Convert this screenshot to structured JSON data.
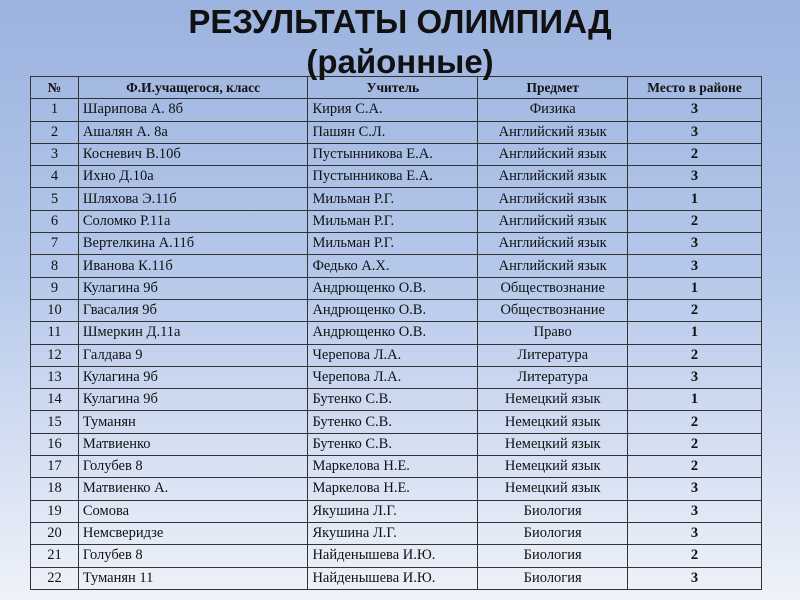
{
  "title": {
    "line1": "РЕЗУЛЬТАТЫ ОЛИМПИАД",
    "line2": "(районные)"
  },
  "table": {
    "headers": [
      "№",
      "Ф.И.учащегося, класс",
      "Учитель",
      "Предмет",
      "Место в районе"
    ],
    "rows": [
      [
        "1",
        "Шарипова А. 8б",
        "Кирия С.А.",
        "Физика",
        "3"
      ],
      [
        "2",
        "Ашалян А. 8а",
        "Пашян С.Л.",
        "Английский язык",
        "3"
      ],
      [
        "3",
        "Косневич В.10б",
        "Пустынникова Е.А.",
        "Английский язык",
        "2"
      ],
      [
        "4",
        "Ихно Д.10а",
        "Пустынникова Е.А.",
        "Английский язык",
        "3"
      ],
      [
        "5",
        "Шляхова Э.11б",
        "Мильман Р.Г.",
        "Английский язык",
        "1"
      ],
      [
        "6",
        "Соломко Р.11а",
        "Мильман Р.Г.",
        "Английский язык",
        "2"
      ],
      [
        "7",
        "Вертелкина А.11б",
        "Мильман Р.Г.",
        "Английский язык",
        "3"
      ],
      [
        "8",
        "Иванова К.11б",
        "Федько А.Х.",
        "Английский язык",
        "3"
      ],
      [
        "9",
        "Кулагина 9б",
        "Андрющенко О.В.",
        "Обществознание",
        "1"
      ],
      [
        "10",
        "Гвасалия 9б",
        "Андрющенко О.В.",
        "Обществознание",
        "2"
      ],
      [
        "11",
        "Шмеркин Д.11а",
        "Андрющенко О.В.",
        "Право",
        "1"
      ],
      [
        "12",
        "Галдава  9",
        "Черепова Л.А.",
        "Литература",
        "2"
      ],
      [
        "13",
        "Кулагина 9б",
        "Черепова Л.А.",
        "Литература",
        "3"
      ],
      [
        "14",
        "Кулагина 9б",
        "Бутенко С.В.",
        "Немецкий язык",
        "1"
      ],
      [
        "15",
        "Туманян",
        "Бутенко С.В.",
        "Немецкий язык",
        "2"
      ],
      [
        "16",
        "Матвиенко",
        "Бутенко С.В.",
        "Немецкий язык",
        "2"
      ],
      [
        "17",
        "Голубев 8",
        "Маркелова Н.Е.",
        "Немецкий язык",
        "2"
      ],
      [
        "18",
        "Матвиенко А.",
        "Маркелова Н.Е.",
        "Немецкий язык",
        "3"
      ],
      [
        "19",
        "Сомова",
        "Якушина Л.Г.",
        "Биология",
        "3"
      ],
      [
        "20",
        "Немсверидзе",
        "Якушина Л.Г.",
        "Биология",
        "3"
      ],
      [
        "21",
        "Голубев 8",
        "Найденышева И.Ю.",
        "Биология",
        "2"
      ],
      [
        "22",
        "Туманян 11",
        "Найденышева И.Ю.",
        "Биология",
        "3"
      ]
    ]
  }
}
